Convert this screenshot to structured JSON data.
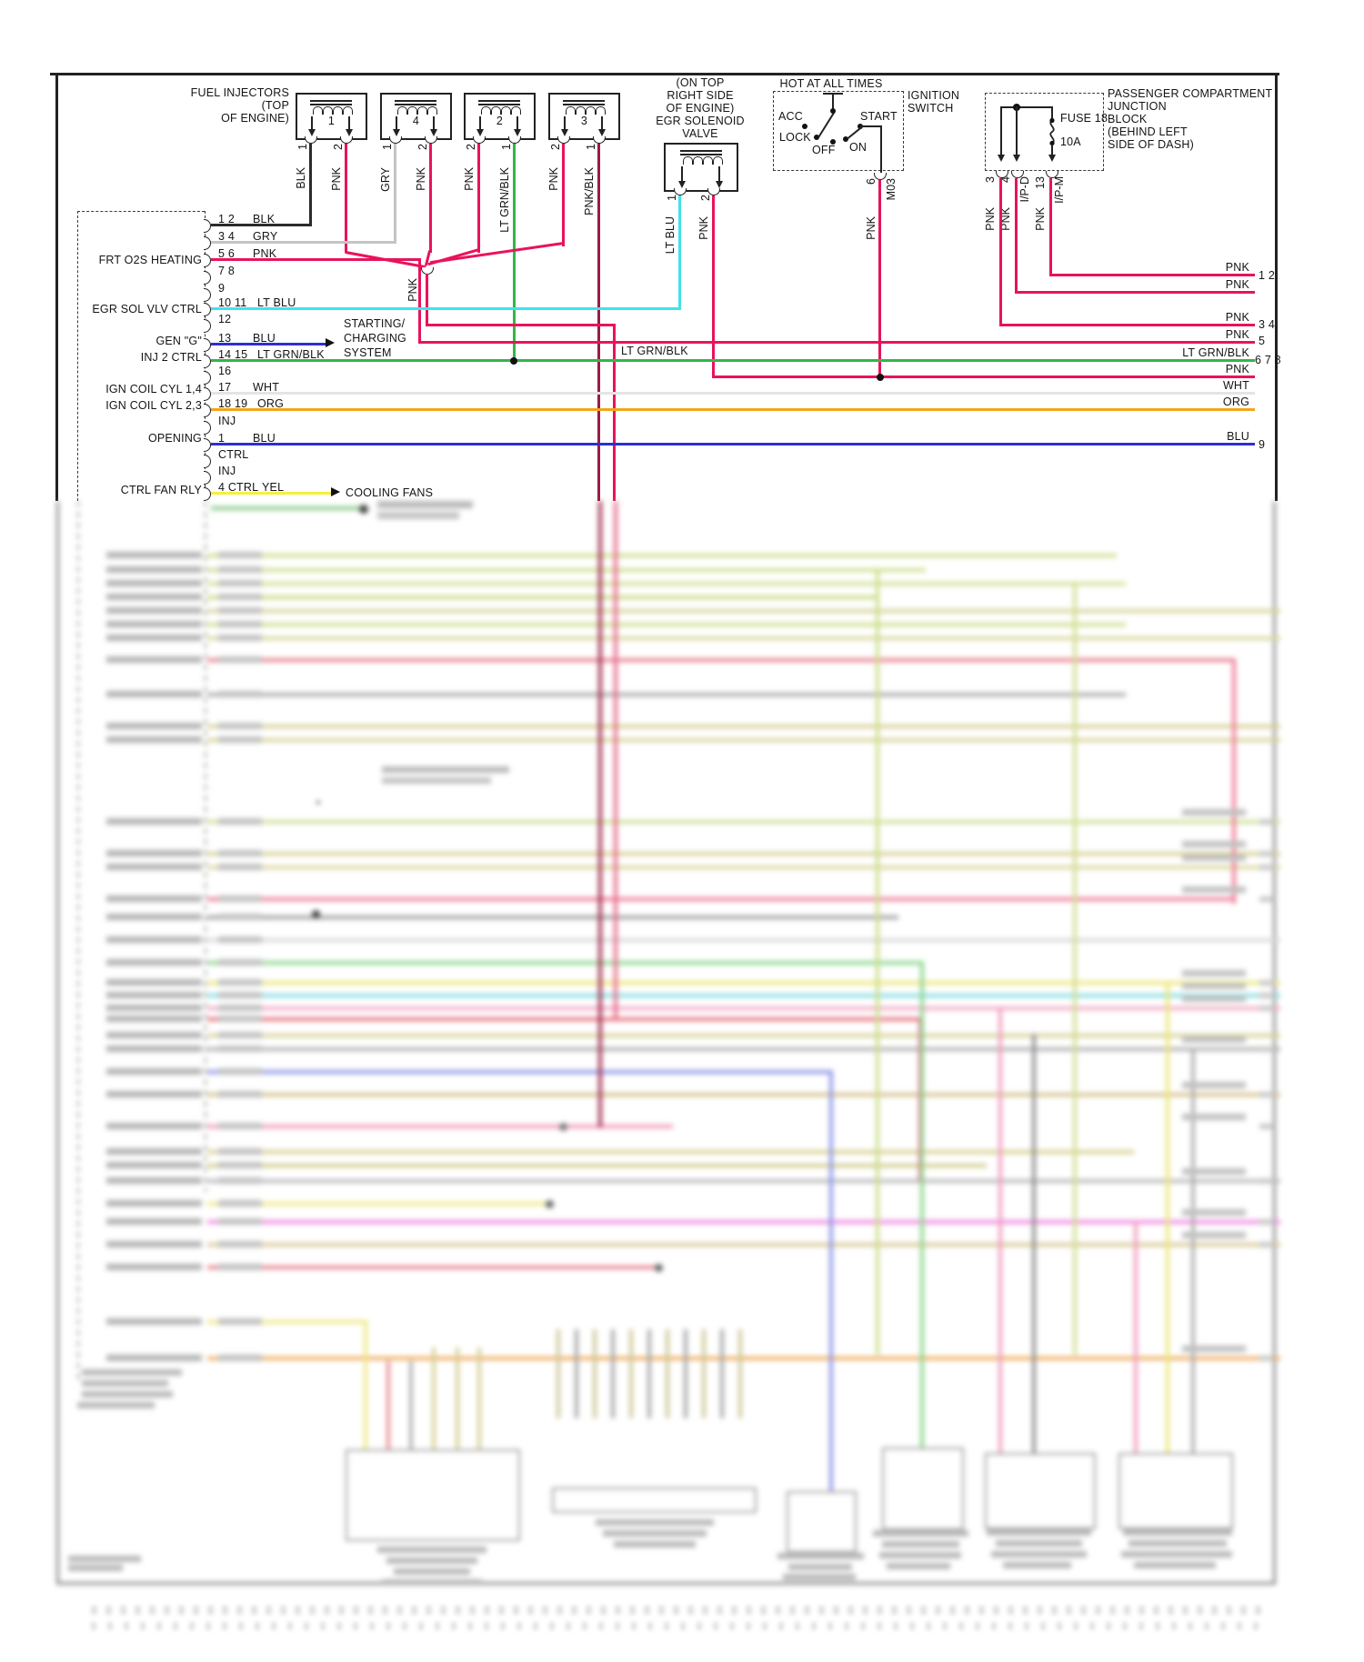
{
  "colors": {
    "pnk": "#e8135c",
    "pnk_blk": "#9b1b42",
    "blk": "#2b2b2b",
    "gry": "#c4c4c4",
    "lt_grn_blk": "#33b54a",
    "lt_blu": "#3fe3ec",
    "blu": "#2b2fd4",
    "wht": "#e4e4e4",
    "org": "#f3a41c",
    "yel": "#f6ef3c"
  },
  "injectors": {
    "title_lines": [
      "FUEL INJECTORS",
      "(TOP",
      "OF ENGINE)"
    ],
    "units": [
      {
        "num": "1",
        "pins": [
          {
            "n": "1",
            "color": "BLK"
          },
          {
            "n": "2",
            "color": "PNK"
          }
        ]
      },
      {
        "num": "4",
        "pins": [
          {
            "n": "1",
            "color": "GRY"
          },
          {
            "n": "2",
            "color": "PNK"
          }
        ]
      },
      {
        "num": "2",
        "pins": [
          {
            "n": "2",
            "color": "PNK"
          },
          {
            "n": "1",
            "color": "LT GRN/BLK"
          }
        ]
      },
      {
        "num": "3",
        "pins": [
          {
            "n": "2",
            "color": "PNK"
          },
          {
            "n": "1",
            "color": "PNK/BLK"
          }
        ]
      }
    ]
  },
  "egr": {
    "title_lines": [
      "(ON TOP",
      "RIGHT SIDE",
      "OF ENGINE)",
      "EGR SOLENOID",
      "VALVE"
    ],
    "pins": [
      {
        "n": "1",
        "color": "LT BLU"
      },
      {
        "n": "2",
        "color": "PNK"
      }
    ]
  },
  "ignition": {
    "hot_label": "HOT AT ALL TIMES",
    "name_lines": [
      "IGNITION",
      "SWITCH"
    ],
    "positions": {
      "acc": "ACC",
      "lock": "LOCK",
      "off": "OFF",
      "on": "ON",
      "start": "START"
    },
    "pin": "6",
    "circuit": "M03",
    "wire_color": "PNK"
  },
  "junction": {
    "title_lines": [
      "PASSENGER COMPARTMENT",
      "JUNCTION",
      "BLOCK",
      "(BEHIND LEFT",
      "SIDE OF DASH)"
    ],
    "fuse": "FUSE 18",
    "rating": "10A",
    "pins": [
      {
        "n": "3",
        "id": "",
        "wire_color": "PNK"
      },
      {
        "n": "4",
        "id": "I/P-D",
        "wire_color": "PNK"
      },
      {
        "n": "13",
        "id": "I/P-M",
        "wire_color": "PNK"
      }
    ]
  },
  "pcm": {
    "rows": [
      {
        "pin": "1 2",
        "color": "BLK",
        "label": ""
      },
      {
        "pin": "3 4",
        "color": "GRY",
        "label": ""
      },
      {
        "pin": "5 6",
        "color": "PNK",
        "label": "FRT O2S HEATING"
      },
      {
        "pin": "7 8",
        "color": "",
        "label": ""
      },
      {
        "pin": "9",
        "color": "",
        "label": ""
      },
      {
        "pin": "10 11",
        "color": "LT BLU",
        "label": "EGR SOL VLV CTRL"
      },
      {
        "pin": "12",
        "color": "",
        "label": ""
      },
      {
        "pin": "13",
        "color": "BLU",
        "label": "GEN \"G\""
      },
      {
        "pin": "14 15",
        "color": "LT GRN/BLK",
        "label": "INJ 2 CTRL"
      },
      {
        "pin": "16",
        "color": "",
        "label": ""
      },
      {
        "pin": "17",
        "color": "WHT",
        "label": "IGN COIL CYL 1,4"
      },
      {
        "pin": "18 19",
        "color": "ORG",
        "label": "IGN COIL CYL 2,3"
      },
      {
        "pin": "INJ",
        "color": "",
        "label": ""
      },
      {
        "pin": "1",
        "color": "BLU",
        "label": "OPENING"
      },
      {
        "pin": "CTRL",
        "color": "",
        "label": ""
      },
      {
        "pin": "INJ",
        "color": "",
        "label": ""
      },
      {
        "pin": "4 CTRL",
        "color": "YEL",
        "label": "CTRL FAN RLY"
      }
    ]
  },
  "mid": {
    "fan_bus_label": "PNK",
    "inj2_wire_label": "LT GRN/BLK",
    "starting_lines": [
      "STARTING/",
      "CHARGING",
      "SYSTEM"
    ],
    "cooling_label": "COOLING FANS"
  },
  "right_edge": {
    "wires": [
      {
        "label": "PNK",
        "num": "1 2"
      },
      {
        "label": "PNK",
        "num": ""
      },
      {
        "label": "PNK",
        "num": "3 4"
      },
      {
        "label": "PNK",
        "num": "5"
      },
      {
        "label": "LT GRN/BLK",
        "num": "6 7 8"
      },
      {
        "label": "PNK",
        "num": ""
      },
      {
        "label": "WHT",
        "num": ""
      },
      {
        "label": "ORG",
        "num": ""
      },
      {
        "label": "BLU",
        "num": "9"
      }
    ]
  }
}
